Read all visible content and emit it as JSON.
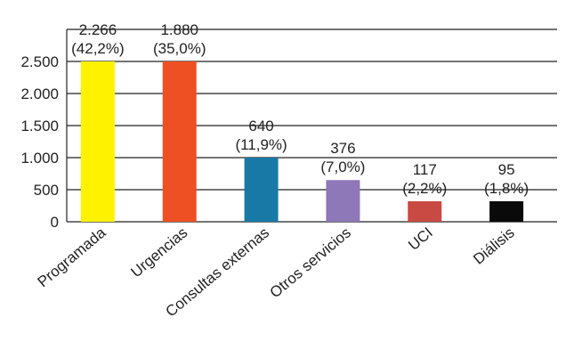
{
  "chart_data": {
    "type": "bar",
    "title": "",
    "xlabel": "",
    "ylabel": "",
    "categories": [
      "Programada",
      "Urgencias",
      "Consultas externas",
      "Otros servicios",
      "UCI",
      "Diálisis"
    ],
    "values": [
      2266,
      1880,
      640,
      376,
      117,
      95
    ],
    "bar_heights_shown": [
      2500,
      2500,
      1000,
      650,
      320,
      320
    ],
    "value_labels": [
      "2.266",
      "1.880",
      "640",
      "376",
      "117",
      "95"
    ],
    "percent_labels": [
      "(42,2%)",
      "(35,0%)",
      "(11,9%)",
      "(7,0%)",
      "(2,2%)",
      "(1,8%)"
    ],
    "colors": [
      "#FFF200",
      "#EE5023",
      "#1979A6",
      "#8E78B7",
      "#C84A43",
      "#0A0A0A"
    ],
    "ylim": [
      0,
      3000
    ],
    "yticks": [
      0,
      500,
      1000,
      1500,
      2000,
      2500
    ],
    "ytick_labels": [
      "0",
      "500",
      "1.000",
      "1.500",
      "2.000",
      "2.500"
    ],
    "grid": "horizontal",
    "legend": "none"
  }
}
